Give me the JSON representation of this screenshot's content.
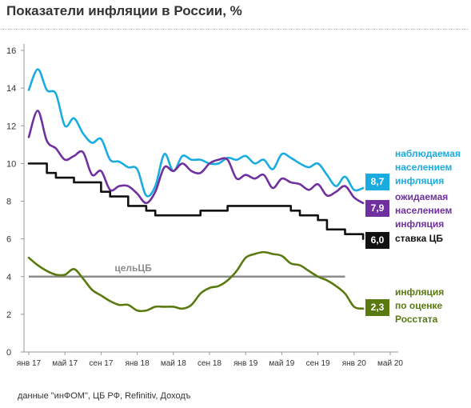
{
  "title": "Показатели инфляции в России, %",
  "source": "данные \"инФОМ\", ЦБ РФ, Refinitiv, Доходъ",
  "colors": {
    "observed": "#1aace0",
    "expected": "#7030a0",
    "key_rate": "#111111",
    "rosstat": "#5a7a10",
    "target": "#8c8c8c"
  },
  "chart_data": {
    "type": "line",
    "title": "Показатели инфляции в России, %",
    "xlabel": "",
    "ylabel": "",
    "ylim": [
      0,
      16
    ],
    "yticks": [
      0,
      2,
      4,
      6,
      8,
      10,
      12,
      14,
      16
    ],
    "xlim": [
      0,
      41
    ],
    "x_ticks": [
      {
        "x": 0,
        "label": "янв 17"
      },
      {
        "x": 4,
        "label": "май 17"
      },
      {
        "x": 8,
        "label": "сен 17"
      },
      {
        "x": 12,
        "label": "янв 18"
      },
      {
        "x": 16,
        "label": "май 18"
      },
      {
        "x": 20,
        "label": "сен 18"
      },
      {
        "x": 24,
        "label": "янв 19"
      },
      {
        "x": 28,
        "label": "май 19"
      },
      {
        "x": 32,
        "label": "сен 19"
      },
      {
        "x": 36,
        "label": "янв 20"
      },
      {
        "x": 40,
        "label": "май 20"
      }
    ],
    "grid": false,
    "series": [
      {
        "key": "observed",
        "name": "наблюдаемая населением инфляция",
        "label_lines": [
          "наблюдаемая",
          "населением",
          "инфляция"
        ],
        "end_value": "8,7",
        "smooth": true,
        "x": [
          0,
          1,
          2,
          3,
          4,
          5,
          6,
          7,
          8,
          9,
          10,
          11,
          12,
          13,
          14,
          15,
          16,
          17,
          18,
          19,
          20,
          21,
          22,
          23,
          24,
          25,
          26,
          27,
          28,
          29,
          30,
          31,
          32,
          33,
          34,
          35,
          36,
          37
        ],
        "values": [
          13.9,
          15.0,
          13.9,
          13.7,
          12.0,
          12.4,
          11.6,
          11.1,
          11.3,
          10.2,
          10.1,
          9.8,
          9.7,
          8.3,
          8.8,
          10.5,
          9.6,
          10.4,
          10.2,
          10.2,
          10.0,
          10.0,
          10.3,
          10.2,
          10.4,
          10.0,
          10.2,
          9.7,
          10.5,
          10.3,
          10.0,
          9.8,
          10.0,
          9.4,
          8.8,
          9.3,
          8.6,
          8.7
        ]
      },
      {
        "key": "expected",
        "name": "ожидаемая населением инфляция",
        "label_lines": [
          "ожидаемая",
          "населением",
          "инфляция"
        ],
        "end_value": "7,9",
        "smooth": true,
        "x": [
          0,
          1,
          2,
          3,
          4,
          5,
          6,
          7,
          8,
          9,
          10,
          11,
          12,
          13,
          14,
          15,
          16,
          17,
          18,
          19,
          20,
          21,
          22,
          23,
          24,
          25,
          26,
          27,
          28,
          29,
          30,
          31,
          32,
          33,
          34,
          35,
          36,
          37
        ],
        "values": [
          11.4,
          12.8,
          11.2,
          10.8,
          10.2,
          10.4,
          10.6,
          9.4,
          9.6,
          8.6,
          8.8,
          8.8,
          8.4,
          7.9,
          8.5,
          9.8,
          9.6,
          10.0,
          9.6,
          9.5,
          10.0,
          10.2,
          10.2,
          9.2,
          9.4,
          9.2,
          9.4,
          8.7,
          9.2,
          9.0,
          8.9,
          8.6,
          8.9,
          8.3,
          8.5,
          8.8,
          8.2,
          7.9
        ]
      },
      {
        "key": "key_rate",
        "name": "ставка ЦБ",
        "label_lines": [
          "ставка ЦБ"
        ],
        "end_value": "6,0",
        "smooth": false,
        "x": [
          0,
          1,
          2,
          3,
          4,
          5,
          6,
          7,
          8,
          9,
          10,
          11,
          12,
          13,
          14,
          15,
          16,
          17,
          18,
          19,
          20,
          21,
          22,
          23,
          24,
          25,
          26,
          27,
          28,
          29,
          30,
          31,
          32,
          33,
          34,
          35,
          36,
          37
        ],
        "values": [
          10.0,
          10.0,
          9.5,
          9.25,
          9.25,
          9.0,
          9.0,
          9.0,
          8.5,
          8.25,
          8.25,
          7.75,
          7.75,
          7.5,
          7.25,
          7.25,
          7.25,
          7.25,
          7.25,
          7.5,
          7.5,
          7.5,
          7.75,
          7.75,
          7.75,
          7.75,
          7.75,
          7.75,
          7.75,
          7.5,
          7.25,
          7.25,
          7.0,
          6.5,
          6.5,
          6.25,
          6.25,
          6.0
        ]
      },
      {
        "key": "rosstat",
        "name": "инфляция по оценке Росстата",
        "label_lines": [
          "инфляция",
          "по оценке",
          "Росстата"
        ],
        "end_value": "2,3",
        "smooth": true,
        "x": [
          0,
          1,
          2,
          3,
          4,
          5,
          6,
          7,
          8,
          9,
          10,
          11,
          12,
          13,
          14,
          15,
          16,
          17,
          18,
          19,
          20,
          21,
          22,
          23,
          24,
          25,
          26,
          27,
          28,
          29,
          30,
          31,
          32,
          33,
          34,
          35,
          36,
          37
        ],
        "values": [
          5.0,
          4.6,
          4.3,
          4.1,
          4.1,
          4.4,
          3.9,
          3.3,
          3.0,
          2.7,
          2.5,
          2.5,
          2.2,
          2.2,
          2.4,
          2.4,
          2.4,
          2.3,
          2.5,
          3.1,
          3.4,
          3.5,
          3.8,
          4.3,
          5.0,
          5.2,
          5.3,
          5.2,
          5.1,
          4.7,
          4.6,
          4.3,
          4.0,
          3.8,
          3.5,
          3.1,
          2.4,
          2.3
        ]
      }
    ],
    "reference_line": {
      "name": "цельЦБ",
      "value": 4,
      "x": [
        0,
        35
      ]
    }
  }
}
